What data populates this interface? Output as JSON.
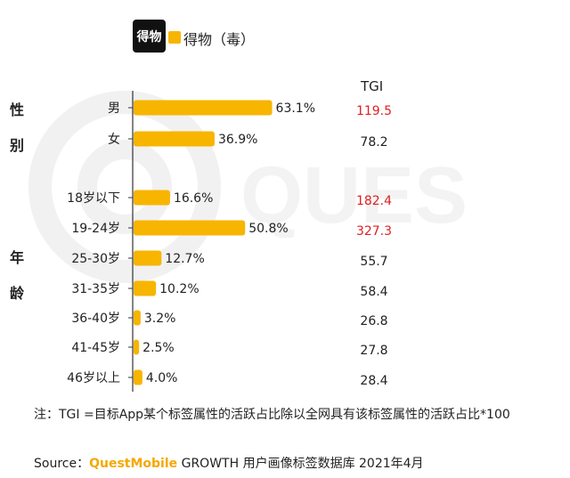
{
  "header": {
    "logo_text": "得物",
    "legend_label": "得物（毒）"
  },
  "tgi_header": "TGI",
  "groups": [
    {
      "label": "性别",
      "chars": [
        "性",
        "别"
      ]
    },
    {
      "label": "年龄",
      "chars": [
        "年",
        "龄"
      ]
    }
  ],
  "chart_data": {
    "type": "bar",
    "orientation": "horizontal",
    "series": [
      {
        "name": "得物（毒）",
        "color": "#f7b500"
      }
    ],
    "categories": [
      "男",
      "女",
      "18岁以下",
      "19-24岁",
      "25-30岁",
      "31-35岁",
      "36-40岁",
      "41-45岁",
      "46岁以上"
    ],
    "values": [
      63.1,
      36.9,
      16.6,
      50.8,
      12.7,
      10.2,
      3.2,
      2.5,
      4.0
    ],
    "value_labels": [
      "63.1%",
      "36.9%",
      "16.6%",
      "50.8%",
      "12.7%",
      "10.2%",
      "3.2%",
      "2.5%",
      "4.0%"
    ],
    "tgi": [
      "119.5",
      "78.2",
      "182.4",
      "327.3",
      "55.7",
      "58.4",
      "26.8",
      "27.8",
      "28.4"
    ],
    "tgi_highlight": [
      true,
      false,
      true,
      true,
      false,
      false,
      false,
      false,
      false
    ],
    "highlight_color": "#e02020",
    "xlim": [
      0,
      100
    ]
  },
  "footer": {
    "note": "注：TGI =目标App某个标签属性的活跃占比除以全网具有该标签属性的活跃占比*100",
    "source_prefix": "Source：",
    "source_brand": "QuestMobile",
    "source_rest": " GROWTH 用户画像标签数据库 2021年4月"
  }
}
